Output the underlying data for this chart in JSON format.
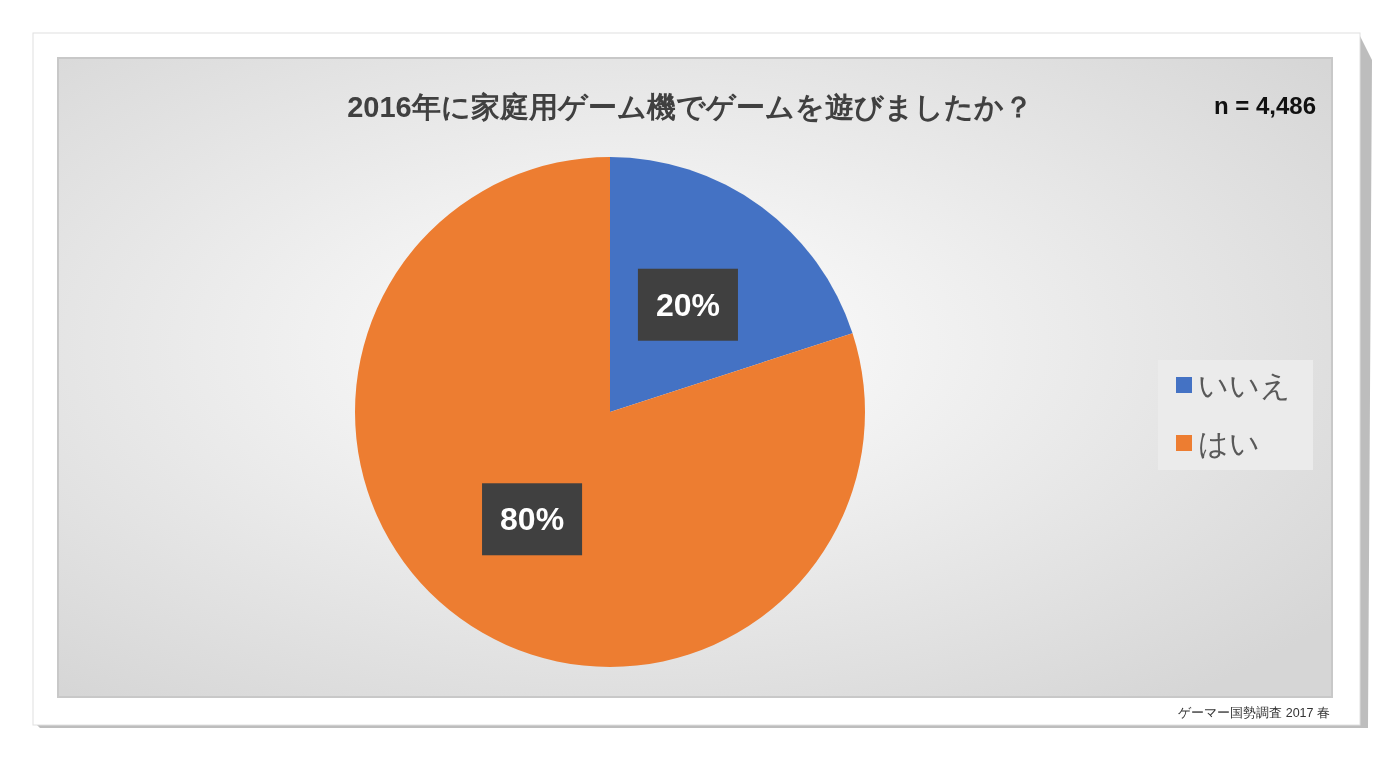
{
  "chart_data": {
    "type": "pie",
    "title": "2016年に家庭用ゲーム機でゲームを遊びましたか？",
    "categories": [
      "いいえ",
      "はい"
    ],
    "values": [
      20,
      80
    ],
    "colors": [
      "#4472c4",
      "#ed7d31"
    ],
    "value_labels": [
      "20%",
      "80%"
    ],
    "legend": "right",
    "annotations": [
      "n = 4,486",
      "ゲーマー国勢調査 2017 春"
    ]
  }
}
